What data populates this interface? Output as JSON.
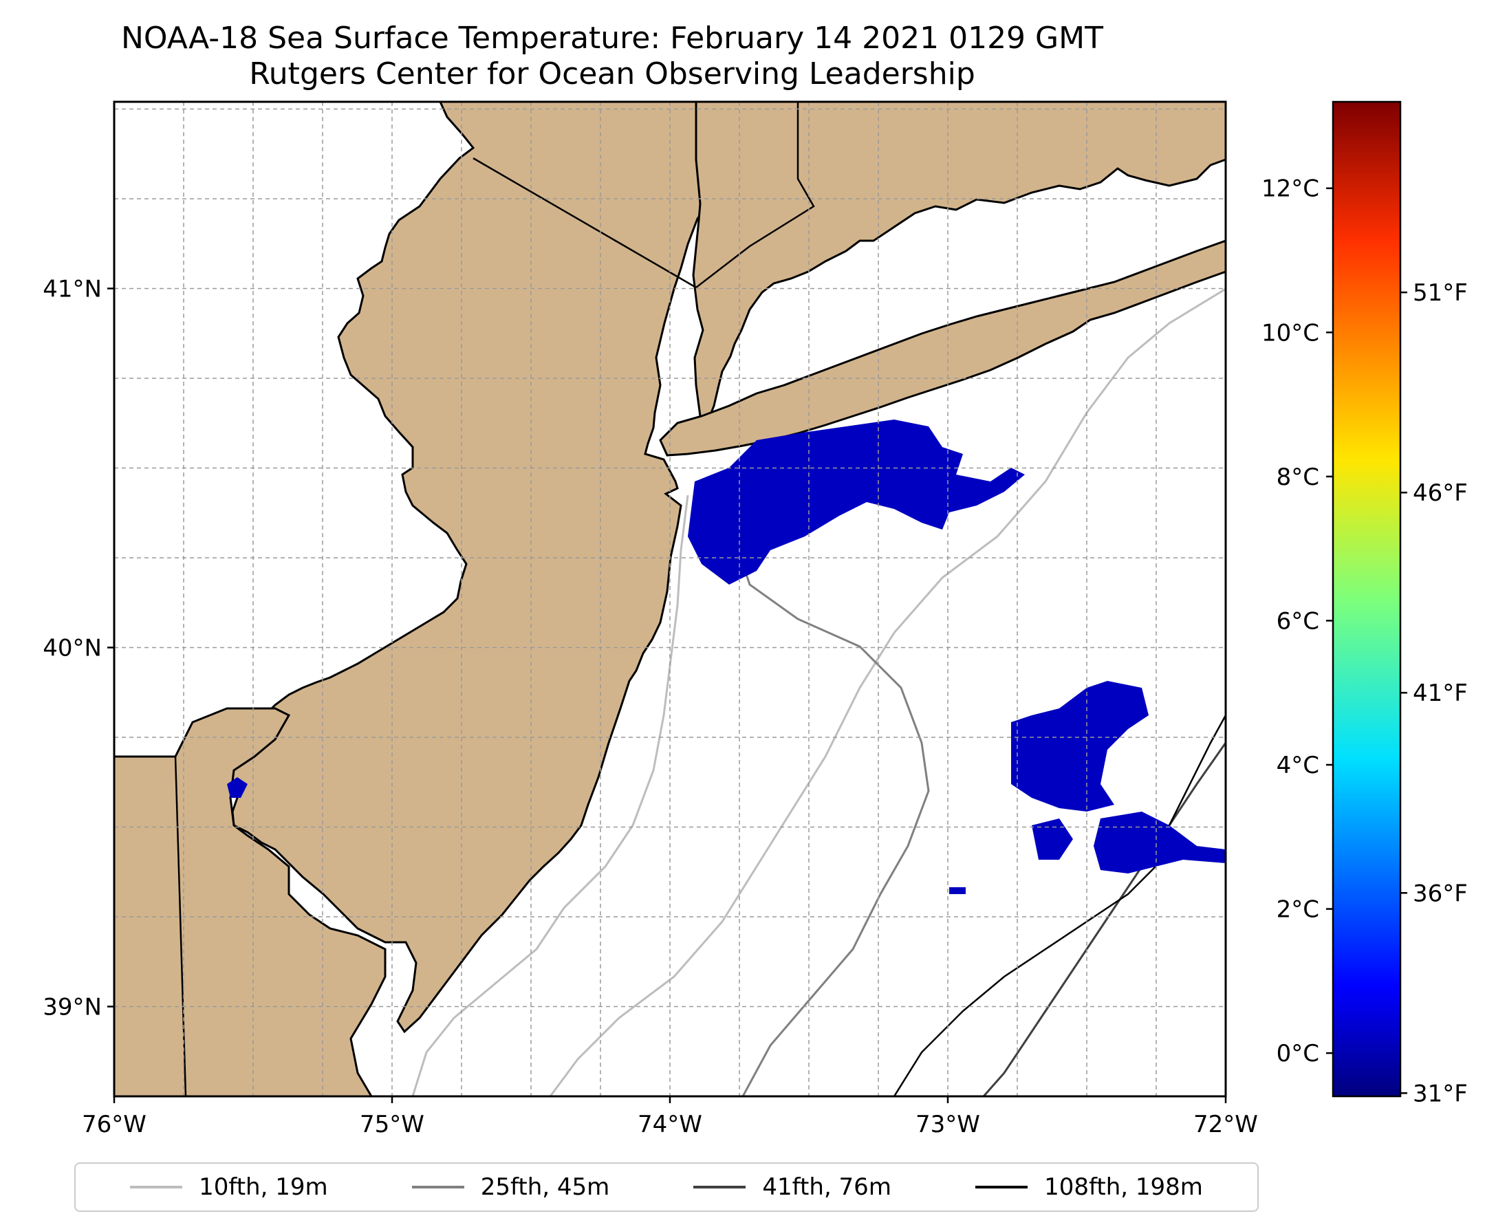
{
  "title": {
    "line1": "NOAA-18 Sea Surface Temperature: February 14 2021 0129 GMT",
    "line2": "Rutgers Center for Ocean Observing Leadership"
  },
  "map": {
    "lon_range": [
      -76,
      -72
    ],
    "lat_range": [
      38.75,
      41.52
    ],
    "x_ticks": [
      "76°W",
      "75°W",
      "74°W",
      "73°W",
      "72°W"
    ],
    "y_ticks": [
      "41°N",
      "40°N",
      "39°N"
    ],
    "land_color": "#d2b48c",
    "sst_color": "#0000c0",
    "gridlines": "dashed"
  },
  "colorbar": {
    "cmap": "jet",
    "celsius_ticks": [
      "12°C",
      "10°C",
      "8°C",
      "6°C",
      "4°C",
      "2°C",
      "0°C"
    ],
    "fahrenheit_ticks": [
      "51°F",
      "46°F",
      "41°F",
      "36°F",
      "31°F"
    ]
  },
  "legend": {
    "items": [
      {
        "label": "10fth, 19m",
        "color": "#bdbdbd"
      },
      {
        "label": "25fth, 45m",
        "color": "#808080"
      },
      {
        "label": "41fth, 76m",
        "color": "#404040"
      },
      {
        "label": "108fth, 198m",
        "color": "#000000"
      }
    ]
  }
}
